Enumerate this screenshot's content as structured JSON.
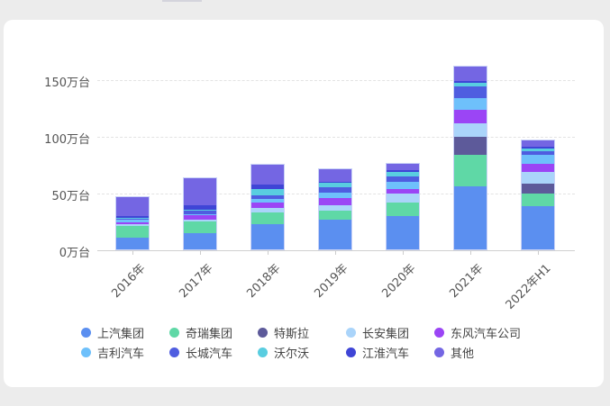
{
  "chart_data": {
    "type": "bar",
    "stacked": true,
    "title": "",
    "xlabel": "",
    "ylabel": "",
    "categories": [
      "2016年",
      "2017年",
      "2018年",
      "2019年",
      "2020年",
      "2021年",
      "2022年H1"
    ],
    "y_ticks": [
      "0万台",
      "50万台",
      "100万台",
      "150万台"
    ],
    "ylim": [
      0,
      165
    ],
    "grid": true,
    "legend_position": "bottom",
    "series": [
      {
        "name": "上汽集团",
        "color": "#5b8ff0",
        "values": [
          11,
          15,
          23,
          27,
          30,
          56,
          39
        ]
      },
      {
        "name": "奇瑞集团",
        "color": "#5fd8a6",
        "values": [
          10,
          10,
          10,
          8,
          12,
          28,
          11
        ]
      },
      {
        "name": "特斯拉",
        "color": "#5d5a9a",
        "values": [
          0,
          0,
          0,
          0,
          0,
          16,
          9
        ]
      },
      {
        "name": "长安集团",
        "color": "#aad4fa",
        "values": [
          2,
          2,
          4,
          5,
          8,
          12,
          10
        ]
      },
      {
        "name": "东风汽车公司",
        "color": "#9b45f5",
        "values": [
          2,
          4,
          5,
          6,
          4,
          12,
          8
        ]
      },
      {
        "name": "吉利汽车",
        "color": "#6ec0fb",
        "values": [
          2,
          1,
          3,
          5,
          7,
          11,
          8
        ]
      },
      {
        "name": "长城汽车",
        "color": "#4f5de0",
        "values": [
          1,
          3,
          4,
          5,
          5,
          10,
          3
        ]
      },
      {
        "name": "沃尔沃",
        "color": "#59cde0",
        "values": [
          1,
          1,
          5,
          4,
          4,
          3,
          2
        ]
      },
      {
        "name": "江淮汽车",
        "color": "#3f45d6",
        "values": [
          1,
          4,
          4,
          1,
          1,
          2,
          2
        ]
      },
      {
        "name": "其他",
        "color": "#7466e3",
        "values": [
          18,
          24,
          18,
          11,
          6,
          13,
          6
        ]
      }
    ]
  },
  "legend": {
    "rows": [
      [
        "上汽集团",
        "奇瑞集团",
        "特斯拉",
        "长安集团",
        "东风汽车公司"
      ],
      [
        "吉利汽车",
        "长城汽车",
        "沃尔沃",
        "江淮汽车",
        "其他"
      ]
    ]
  }
}
